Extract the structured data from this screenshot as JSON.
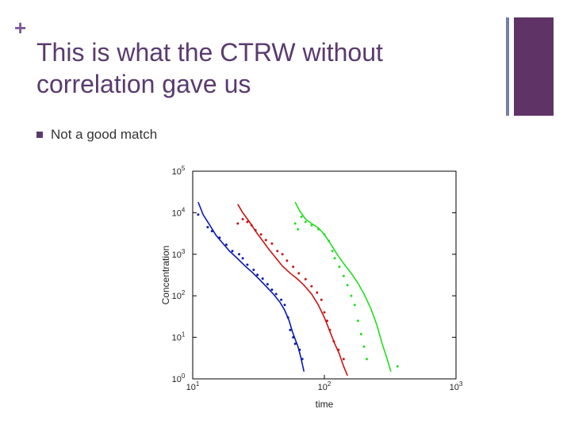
{
  "slide": {
    "plus": "+",
    "title": "This is what the CTRW without correlation gave us",
    "bullet": "Not a good match"
  },
  "colors": {
    "title": "#5a3b6e",
    "accent_block": "#5f3366",
    "accent_line": "#7080a8",
    "series_blue": "#0a1ab0",
    "series_red": "#c81414",
    "series_green": "#22dd22"
  },
  "chart_data": {
    "type": "scatter",
    "xlabel": "time",
    "ylabel": "Concentration",
    "x_scale": "log",
    "y_scale": "log",
    "xlim": [
      10,
      1000
    ],
    "ylim": [
      1,
      100000
    ],
    "x_ticks": [
      {
        "base": "10",
        "exp": "1",
        "v": 10
      },
      {
        "base": "10",
        "exp": "2",
        "v": 100
      },
      {
        "base": "10",
        "exp": "3",
        "v": 1000
      }
    ],
    "y_ticks": [
      {
        "base": "10",
        "exp": "0",
        "v": 1
      },
      {
        "base": "10",
        "exp": "1",
        "v": 10
      },
      {
        "base": "10",
        "exp": "2",
        "v": 100
      },
      {
        "base": "10",
        "exp": "3",
        "v": 1000
      },
      {
        "base": "10",
        "exp": "4",
        "v": 10000
      },
      {
        "base": "10",
        "exp": "5",
        "v": 100000
      }
    ],
    "series": [
      {
        "color": "#0a1ab0",
        "line": [
          [
            11,
            18000
          ],
          [
            12,
            9000
          ],
          [
            13.5,
            5000
          ],
          [
            15,
            2900
          ],
          [
            17,
            1800
          ],
          [
            19,
            1200
          ],
          [
            22,
            780
          ],
          [
            25,
            520
          ],
          [
            28,
            380
          ],
          [
            32,
            250
          ],
          [
            36,
            170
          ],
          [
            41,
            110
          ],
          [
            46,
            70
          ],
          [
            50,
            45
          ],
          [
            54,
            25
          ],
          [
            57,
            14
          ],
          [
            60,
            9
          ],
          [
            63,
            6
          ],
          [
            66,
            3.5
          ],
          [
            70,
            1.5
          ]
        ],
        "points": [
          [
            11,
            9000
          ],
          [
            13,
            4500
          ],
          [
            14,
            3600
          ],
          [
            16,
            2500
          ],
          [
            18,
            1700
          ],
          [
            20,
            1200
          ],
          [
            22.5,
            1000
          ],
          [
            24,
            800
          ],
          [
            26,
            560
          ],
          [
            29,
            420
          ],
          [
            31,
            320
          ],
          [
            34,
            260
          ],
          [
            37,
            190
          ],
          [
            40,
            140
          ],
          [
            43,
            110
          ],
          [
            47,
            80
          ],
          [
            50,
            60
          ],
          [
            53,
            30
          ],
          [
            55,
            15
          ],
          [
            58,
            10
          ],
          [
            60,
            7
          ],
          [
            65,
            5
          ],
          [
            68,
            3
          ]
        ]
      },
      {
        "color": "#c81414",
        "line": [
          [
            22,
            16000
          ],
          [
            24,
            10000
          ],
          [
            27,
            6000
          ],
          [
            30,
            3600
          ],
          [
            34,
            2100
          ],
          [
            38,
            1300
          ],
          [
            43,
            800
          ],
          [
            48,
            520
          ],
          [
            55,
            350
          ],
          [
            62,
            260
          ],
          [
            70,
            180
          ],
          [
            80,
            110
          ],
          [
            90,
            60
          ],
          [
            100,
            30
          ],
          [
            110,
            14
          ],
          [
            120,
            7
          ],
          [
            130,
            4
          ],
          [
            140,
            2
          ],
          [
            150,
            1.2
          ]
        ],
        "points": [
          [
            22,
            5500
          ],
          [
            24,
            7000
          ],
          [
            26,
            6000
          ],
          [
            28,
            5000
          ],
          [
            30,
            3800
          ],
          [
            33,
            3000
          ],
          [
            36,
            2200
          ],
          [
            40,
            1800
          ],
          [
            44,
            1200
          ],
          [
            48,
            1000
          ],
          [
            52,
            700
          ],
          [
            58,
            500
          ],
          [
            64,
            350
          ],
          [
            72,
            250
          ],
          [
            80,
            170
          ],
          [
            88,
            120
          ],
          [
            95,
            80
          ],
          [
            100,
            40
          ],
          [
            105,
            25
          ],
          [
            110,
            15
          ],
          [
            118,
            8
          ],
          [
            128,
            5
          ],
          [
            140,
            3
          ]
        ]
      },
      {
        "color": "#22dd22",
        "line": [
          [
            60,
            18000
          ],
          [
            65,
            11000
          ],
          [
            72,
            7000
          ],
          [
            80,
            5500
          ],
          [
            90,
            4300
          ],
          [
            100,
            3000
          ],
          [
            110,
            1900
          ],
          [
            125,
            1000
          ],
          [
            140,
            600
          ],
          [
            160,
            350
          ],
          [
            180,
            200
          ],
          [
            200,
            110
          ],
          [
            225,
            50
          ],
          [
            250,
            20
          ],
          [
            275,
            7
          ],
          [
            300,
            3
          ],
          [
            320,
            1.5
          ]
        ],
        "points": [
          [
            60,
            5500
          ],
          [
            63,
            4000
          ],
          [
            67,
            8000
          ],
          [
            72,
            6000
          ],
          [
            80,
            5000
          ],
          [
            90,
            4000
          ],
          [
            100,
            3000
          ],
          [
            108,
            2100
          ],
          [
            115,
            1200
          ],
          [
            120,
            800
          ],
          [
            130,
            500
          ],
          [
            140,
            300
          ],
          [
            150,
            180
          ],
          [
            160,
            100
          ],
          [
            170,
            60
          ],
          [
            180,
            25
          ],
          [
            190,
            12
          ],
          [
            200,
            6
          ],
          [
            210,
            3
          ],
          [
            360,
            2
          ]
        ]
      }
    ]
  }
}
